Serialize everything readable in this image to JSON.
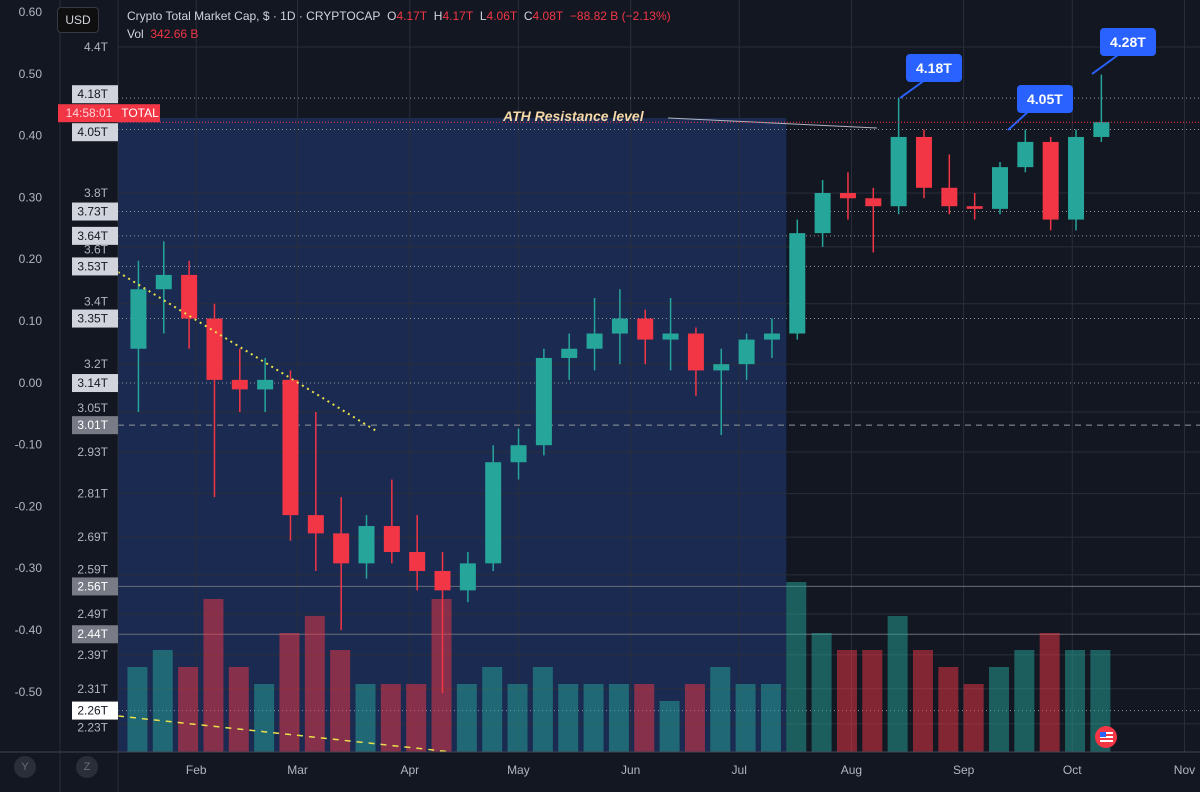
{
  "legend": {
    "title": "Crypto Total Market Cap, $ · 1D · CRYPTOCAP",
    "o_label": "O",
    "o": "4.17T",
    "h_label": "H",
    "h": "4.17T",
    "l_label": "L",
    "l": "4.06T",
    "c_label": "C",
    "c": "4.08T",
    "change": "−88.82 B (−2.13%)",
    "vol_label": "Vol",
    "vol": "342.66 B"
  },
  "currency_button": "USD",
  "countdown": "14:58:01",
  "symbol_tag": "TOTAL",
  "annotation": "ATH Resistance level",
  "callouts": [
    "4.18T",
    "4.05T",
    "4.28T"
  ],
  "corner_buttons": [
    "Y",
    "Z"
  ],
  "colors": {
    "up": "#26a69a",
    "down": "#f23645",
    "shade": "#1a2a50",
    "callout": "#2962ff",
    "trend": "#e8e04a"
  },
  "chart_data": {
    "type": "candlestick",
    "title": "Crypto Total Market Cap, $ · 1D · CRYPTOCAP",
    "price_scale": "log",
    "ylim": [
      2.2,
      4.5
    ],
    "price_ticks": [
      "4.4T",
      "3.8T",
      "3.6T",
      "3.4T",
      "3.2T",
      "3.05T",
      "2.93T",
      "2.81T",
      "2.69T",
      "2.59T",
      "2.49T",
      "2.39T",
      "2.31T",
      "2.23T"
    ],
    "price_tick_values": [
      4.4,
      3.8,
      3.6,
      3.4,
      3.2,
      3.05,
      2.93,
      2.81,
      2.69,
      2.59,
      2.49,
      2.39,
      2.31,
      2.23
    ],
    "level_labels": [
      "4.18T",
      "4.05T",
      "3.73T",
      "3.64T",
      "3.53T",
      "3.35T",
      "3.14T",
      "3.01T",
      "2.56T",
      "2.44T",
      "2.26T"
    ],
    "level_values": [
      4.18,
      4.05,
      3.73,
      3.64,
      3.53,
      3.35,
      3.14,
      3.01,
      2.56,
      2.44,
      2.26
    ],
    "level_styles": [
      "dotted",
      "dotted",
      "dotted",
      "dotted",
      "dotted",
      "dotted",
      "dotted",
      "dashed",
      "solid",
      "solid",
      "dotted"
    ],
    "current_price": 4.08,
    "left_axis_ticks": [
      "0.60",
      "0.50",
      "0.40",
      "0.30",
      "0.20",
      "0.10",
      "0.00",
      "-0.10",
      "-0.20",
      "-0.30",
      "-0.40",
      "-0.50"
    ],
    "left_axis_values": [
      0.6,
      0.5,
      0.4,
      0.3,
      0.2,
      0.1,
      0,
      -0.1,
      -0.2,
      -0.3,
      -0.4,
      -0.5
    ],
    "x_ticks": [
      "Feb",
      "Mar",
      "Apr",
      "May",
      "Jun",
      "Jul",
      "Aug",
      "Sep",
      "Oct",
      "Nov"
    ],
    "x_tick_days": [
      31,
      59,
      90,
      120,
      151,
      181,
      212,
      243,
      273,
      304
    ],
    "shaded_range_days": [
      9,
      194
    ],
    "candles_weekly": {
      "start_days": [
        12,
        19,
        26,
        33,
        40,
        47,
        54,
        61,
        68,
        75,
        82,
        89,
        96,
        103,
        110,
        117,
        124,
        131,
        138,
        145,
        152,
        159,
        166,
        173,
        180,
        187,
        194,
        201,
        208,
        215,
        222,
        229,
        236,
        243,
        250,
        257,
        264,
        271,
        278
      ],
      "ohlc": [
        [
          3.25,
          3.55,
          3.05,
          3.45
        ],
        [
          3.45,
          3.62,
          3.3,
          3.5
        ],
        [
          3.5,
          3.55,
          3.25,
          3.35
        ],
        [
          3.35,
          3.4,
          2.8,
          3.15
        ],
        [
          3.15,
          3.25,
          3.05,
          3.12
        ],
        [
          3.12,
          3.22,
          3.05,
          3.15
        ],
        [
          3.15,
          3.18,
          2.68,
          2.75
        ],
        [
          2.75,
          3.05,
          2.6,
          2.7
        ],
        [
          2.7,
          2.8,
          2.45,
          2.62
        ],
        [
          2.62,
          2.75,
          2.58,
          2.72
        ],
        [
          2.72,
          2.85,
          2.62,
          2.65
        ],
        [
          2.65,
          2.75,
          2.55,
          2.6
        ],
        [
          2.6,
          2.65,
          2.3,
          2.55
        ],
        [
          2.55,
          2.65,
          2.52,
          2.62
        ],
        [
          2.62,
          2.95,
          2.6,
          2.9
        ],
        [
          2.9,
          3.0,
          2.85,
          2.95
        ],
        [
          2.95,
          3.25,
          2.92,
          3.22
        ],
        [
          3.22,
          3.3,
          3.15,
          3.25
        ],
        [
          3.25,
          3.42,
          3.18,
          3.3
        ],
        [
          3.3,
          3.45,
          3.2,
          3.35
        ],
        [
          3.35,
          3.38,
          3.2,
          3.28
        ],
        [
          3.28,
          3.42,
          3.18,
          3.3
        ],
        [
          3.3,
          3.32,
          3.1,
          3.18
        ],
        [
          3.18,
          3.25,
          2.98,
          3.2
        ],
        [
          3.2,
          3.3,
          3.15,
          3.28
        ],
        [
          3.28,
          3.35,
          3.22,
          3.3
        ],
        [
          3.3,
          3.7,
          3.28,
          3.65
        ],
        [
          3.65,
          3.85,
          3.6,
          3.8
        ],
        [
          3.8,
          3.88,
          3.7,
          3.78
        ],
        [
          3.78,
          3.82,
          3.58,
          3.75
        ],
        [
          3.75,
          4.18,
          3.72,
          4.02
        ],
        [
          4.02,
          4.05,
          3.78,
          3.82
        ],
        [
          3.82,
          3.95,
          3.72,
          3.75
        ],
        [
          3.75,
          3.8,
          3.7,
          3.74
        ],
        [
          3.74,
          3.92,
          3.72,
          3.9
        ],
        [
          3.9,
          4.05,
          3.88,
          4.0
        ],
        [
          4.0,
          4.02,
          3.66,
          3.7
        ],
        [
          3.7,
          4.05,
          3.66,
          4.02
        ],
        [
          4.02,
          4.28,
          4.0,
          4.08
        ]
      ],
      "volume_relative": [
        0.5,
        0.6,
        0.5,
        0.9,
        0.5,
        0.4,
        0.7,
        0.8,
        0.6,
        0.4,
        0.4,
        0.4,
        0.9,
        0.4,
        0.5,
        0.4,
        0.5,
        0.4,
        0.4,
        0.4,
        0.4,
        0.3,
        0.4,
        0.5,
        0.4,
        0.4,
        1.0,
        0.7,
        0.6,
        0.6,
        0.8,
        0.6,
        0.5,
        0.4,
        0.5,
        0.6,
        0.7,
        0.6,
        0.6
      ]
    }
  }
}
